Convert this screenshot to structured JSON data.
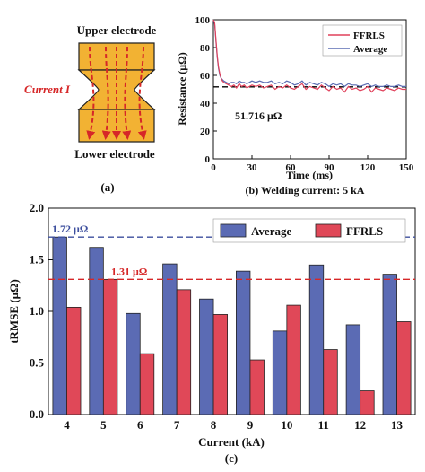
{
  "panel_a": {
    "upper_label": "Upper electrode",
    "lower_label": "Lower electrode",
    "current_label": "Current I",
    "caption": "(a)",
    "colors": {
      "electrode": "#f2b233",
      "arrow": "#d62728",
      "label": "#d62728"
    }
  },
  "chart_data": [
    {
      "id": "b",
      "type": "line",
      "xlabel": "Time (ms)",
      "ylabel": "Resistance (μΩ)",
      "xlim": [
        0,
        150
      ],
      "ylim": [
        0,
        100
      ],
      "xticks": [
        0,
        30,
        60,
        90,
        120,
        150
      ],
      "yticks": [
        0,
        20,
        40,
        60,
        80,
        100
      ],
      "caption": "(b) Welding current: 5 kA",
      "reference_line": {
        "value": 51.716,
        "label": "51.716 μΩ",
        "color": "#000000",
        "style": "dashed"
      },
      "legend_position": "top-right",
      "series": [
        {
          "name": "FFRLS",
          "color": "#e0405a",
          "x": [
            0,
            1,
            2,
            3,
            4,
            5,
            6,
            7,
            8,
            10,
            12,
            14,
            16,
            18,
            20,
            22,
            24,
            26,
            28,
            30,
            33,
            36,
            39,
            42,
            45,
            48,
            51,
            54,
            57,
            60,
            63,
            66,
            69,
            72,
            75,
            78,
            81,
            84,
            87,
            90,
            93,
            96,
            99,
            102,
            105,
            108,
            111,
            114,
            117,
            120,
            123,
            126,
            129,
            132,
            135,
            138,
            141,
            144,
            147,
            150
          ],
          "y": [
            100,
            98,
            85,
            74,
            66,
            61,
            58,
            56,
            55,
            54,
            53,
            52,
            53,
            51,
            54,
            52,
            53,
            51,
            52,
            53,
            52,
            53,
            51,
            52,
            53,
            50,
            52,
            51,
            53,
            51,
            50,
            52,
            54,
            50,
            52,
            51,
            50,
            53,
            51,
            49,
            52,
            50,
            51,
            48,
            52,
            50,
            51,
            49,
            50,
            52,
            48,
            51,
            50,
            49,
            51,
            50,
            49,
            51,
            50,
            50
          ]
        },
        {
          "name": "Average",
          "color": "#5b6db3",
          "x": [
            0,
            1,
            2,
            3,
            4,
            5,
            6,
            7,
            8,
            10,
            12,
            14,
            16,
            18,
            20,
            22,
            24,
            26,
            28,
            30,
            33,
            36,
            39,
            42,
            45,
            48,
            51,
            54,
            57,
            60,
            63,
            66,
            69,
            72,
            75,
            78,
            81,
            84,
            87,
            90,
            93,
            96,
            99,
            102,
            105,
            108,
            111,
            114,
            117,
            120,
            123,
            126,
            129,
            132,
            135,
            138,
            141,
            144,
            147,
            150
          ],
          "y": [
            100,
            97,
            84,
            73,
            65,
            60,
            58,
            57,
            56,
            55,
            54,
            55,
            55,
            54,
            56,
            55,
            55,
            54,
            55,
            56,
            55,
            56,
            55,
            55,
            56,
            54,
            55,
            54,
            56,
            55,
            53,
            54,
            56,
            53,
            55,
            54,
            53,
            55,
            54,
            52,
            54,
            53,
            54,
            52,
            54,
            53,
            53,
            52,
            53,
            54,
            52,
            53,
            52,
            52,
            53,
            52,
            52,
            53,
            52,
            52
          ]
        }
      ]
    },
    {
      "id": "c",
      "type": "bar",
      "xlabel": "Current (kA)",
      "ylabel": "tRMSE (μΩ)",
      "ylim": [
        0,
        2.0
      ],
      "yticks": [
        "0.0",
        "0.5",
        "1.0",
        "1.5",
        "2.0"
      ],
      "categories": [
        "4",
        "5",
        "6",
        "7",
        "8",
        "9",
        "10",
        "11",
        "12",
        "13"
      ],
      "caption": "(c)",
      "legend_position": "top-right",
      "series": [
        {
          "name": "Average",
          "color": "#5b6bb4",
          "values": [
            1.72,
            1.62,
            0.98,
            1.46,
            1.12,
            1.39,
            0.81,
            1.45,
            0.87,
            1.36
          ]
        },
        {
          "name": "FFRLS",
          "color": "#e04858",
          "values": [
            1.04,
            1.31,
            0.59,
            1.21,
            0.97,
            0.53,
            1.06,
            0.63,
            0.23,
            0.9
          ]
        }
      ],
      "reference_lines": [
        {
          "value": 1.72,
          "label": "1.72 μΩ",
          "color": "#3d4f9e",
          "style": "dashed"
        },
        {
          "value": 1.31,
          "label": "1.31 μΩ",
          "color": "#d62728",
          "style": "dashed"
        }
      ]
    }
  ]
}
